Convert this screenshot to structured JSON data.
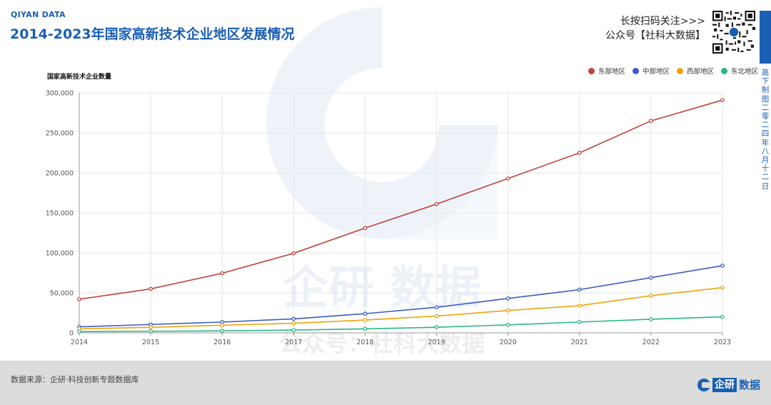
{
  "header": {
    "brand": "QIYAN DATA",
    "title": "2014-2023年国家高新技术企业地区发展情况",
    "follow_line1": "长按扫码关注>>>",
    "follow_line2": "公众号【社科大数据】"
  },
  "side": {
    "date_text": "高下制图 二零二四年八月十二日"
  },
  "watermark": {
    "logo_text": "企研 数据",
    "public_account": "公众号：社科大数据"
  },
  "footer": {
    "source": "数据来源：企研·科技创新专题数据库",
    "logo_box": "企研",
    "logo_text": "数据"
  },
  "colors": {
    "accent": "#1a5fb4",
    "east": "#c0443e",
    "central": "#3a5cc6",
    "west": "#f0a30a",
    "northeast": "#2cb58a"
  },
  "chart_data": {
    "type": "line",
    "title": "2014-2023年国家高新技术企业地区发展情况",
    "xlabel": "",
    "ylabel": "国家高新技术企业数量",
    "categories": [
      "2014",
      "2015",
      "2016",
      "2017",
      "2018",
      "2019",
      "2020",
      "2021",
      "2022",
      "2023"
    ],
    "ylim": [
      0,
      300000
    ],
    "yticks": [
      0,
      50000,
      100000,
      150000,
      200000,
      250000,
      300000
    ],
    "ytick_labels": [
      "0",
      "50,000",
      "100,000",
      "150,000",
      "200,000",
      "250,000",
      "300,000"
    ],
    "grid": true,
    "legend_position": "top-right",
    "series": [
      {
        "name": "东部地区",
        "color": "#c0443e",
        "values": [
          42000,
          55000,
          74500,
          99500,
          131000,
          161000,
          193000,
          225000,
          265000,
          291000
        ]
      },
      {
        "name": "中部地区",
        "color": "#3a5cc6",
        "values": [
          7500,
          10500,
          13500,
          17500,
          24000,
          32000,
          43000,
          54000,
          69000,
          84000
        ]
      },
      {
        "name": "西部地区",
        "color": "#f0a30a",
        "values": [
          5000,
          7000,
          9500,
          12000,
          16000,
          21000,
          28000,
          34000,
          46500,
          56500
        ]
      },
      {
        "name": "东北地区",
        "color": "#2cb58a",
        "values": [
          1500,
          2000,
          2500,
          3500,
          5000,
          7000,
          10000,
          13500,
          17000,
          20000
        ]
      }
    ]
  }
}
